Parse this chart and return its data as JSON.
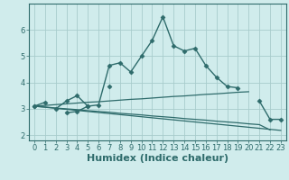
{
  "xlabel": "Humidex (Indice chaleur)",
  "x_values": [
    0,
    1,
    2,
    3,
    4,
    5,
    6,
    7,
    8,
    9,
    10,
    11,
    12,
    13,
    14,
    15,
    16,
    17,
    18,
    19,
    20,
    21,
    22,
    23
  ],
  "lines": [
    {
      "y": [
        3.1,
        3.25,
        null,
        2.85,
        2.9,
        3.1,
        3.15,
        4.65,
        4.75,
        4.4,
        5.0,
        5.6,
        6.5,
        5.4,
        5.2,
        5.3,
        4.65,
        4.2,
        3.85,
        3.8,
        null,
        3.3,
        2.6,
        2.6
      ],
      "color": "#2e6b6b",
      "marker": "D",
      "markersize": 2.5,
      "linewidth": 1.0
    },
    {
      "y": [
        3.1,
        null,
        3.0,
        3.3,
        3.5,
        3.1,
        null,
        3.85,
        null,
        null,
        null,
        null,
        null,
        null,
        null,
        null,
        null,
        null,
        null,
        null,
        null,
        null,
        null,
        null
      ],
      "color": "#2e6b6b",
      "marker": "D",
      "markersize": 2.5,
      "linewidth": 1.0
    },
    {
      "y": [
        3.1,
        3.13,
        3.16,
        3.19,
        3.22,
        3.25,
        3.27,
        3.3,
        3.33,
        3.36,
        3.38,
        3.41,
        3.44,
        3.47,
        3.49,
        3.52,
        3.55,
        3.57,
        3.6,
        3.63,
        3.65,
        null,
        null,
        null
      ],
      "color": "#2e6b6b",
      "marker": null,
      "markersize": 0,
      "linewidth": 0.9
    },
    {
      "y": [
        3.1,
        3.07,
        3.03,
        3.0,
        2.97,
        2.93,
        2.9,
        2.87,
        2.83,
        2.8,
        2.77,
        2.73,
        2.7,
        2.67,
        2.63,
        2.6,
        2.57,
        2.53,
        2.5,
        2.47,
        2.43,
        2.4,
        2.2,
        null
      ],
      "color": "#2e6b6b",
      "marker": null,
      "markersize": 0,
      "linewidth": 0.9
    },
    {
      "y": [
        3.1,
        3.06,
        3.02,
        2.98,
        2.94,
        2.9,
        2.86,
        2.82,
        2.78,
        2.74,
        2.7,
        2.66,
        2.62,
        2.58,
        2.54,
        2.5,
        2.46,
        2.42,
        2.38,
        2.34,
        2.3,
        2.26,
        2.22,
        2.18
      ],
      "color": "#2e6b6b",
      "marker": null,
      "markersize": 0,
      "linewidth": 0.9
    }
  ],
  "xlim": [
    -0.5,
    23.5
  ],
  "ylim": [
    1.8,
    7.0
  ],
  "yticks": [
    2,
    3,
    4,
    5,
    6
  ],
  "xticks": [
    0,
    1,
    2,
    3,
    4,
    5,
    6,
    7,
    8,
    9,
    10,
    11,
    12,
    13,
    14,
    15,
    16,
    17,
    18,
    19,
    20,
    21,
    22,
    23
  ],
  "bg_color": "#d0ecec",
  "grid_color": "#a8cccc",
  "line_color": "#2e6b6b",
  "tick_fontsize": 6,
  "xlabel_fontsize": 8
}
